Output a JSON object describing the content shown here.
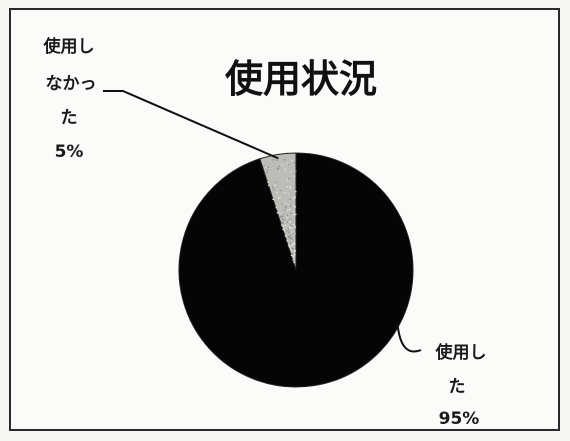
{
  "chart_data": {
    "type": "pie",
    "title": "使用状況",
    "slices": [
      {
        "label_lines": [
          "使用し",
          "た",
          "95%"
        ],
        "category": "使用した",
        "value": 95,
        "color": "#050505"
      },
      {
        "label_lines": [
          "使用し",
          "なかっ",
          "た",
          "5%"
        ],
        "category": "使用しなかった",
        "value": 5,
        "color": "#bdbdb8"
      }
    ],
    "legend": "none",
    "start_angle_deg": 0,
    "direction": "counterclockwise-from-top for first slice"
  }
}
